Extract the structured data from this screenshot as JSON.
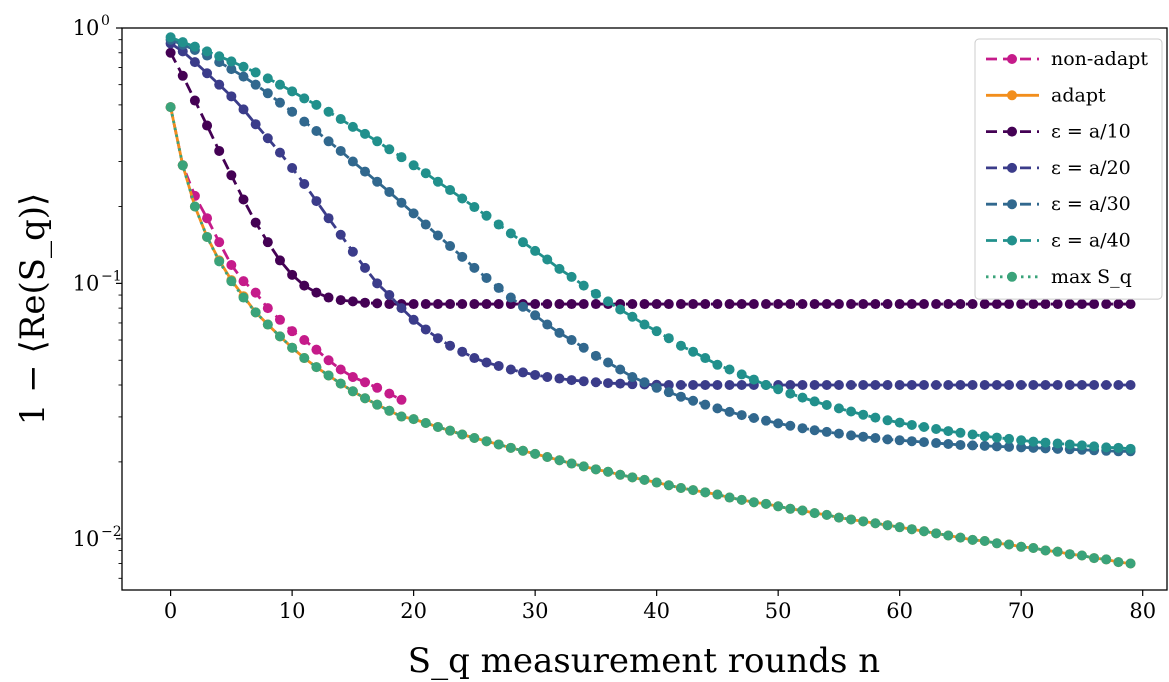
{
  "chart_data": {
    "type": "line",
    "title": "",
    "xlabel": "S_q measurement rounds n",
    "ylabel": "1 − ⟨Re(S_q)⟩",
    "xlim": [
      -4,
      82
    ],
    "ylim": [
      0.0063,
      1.0
    ],
    "yscale": "log",
    "grid": false,
    "legend_position": "top-right",
    "x_ticks": [
      0,
      10,
      20,
      30,
      40,
      50,
      60,
      70,
      80
    ],
    "y_ticks": [
      {
        "value": 1.0,
        "base": "10",
        "exp": "0"
      },
      {
        "value": 0.1,
        "base": "10",
        "exp": "−1"
      },
      {
        "value": 0.01,
        "base": "10",
        "exp": "−2"
      }
    ],
    "series": [
      {
        "name": "non-adapt",
        "color": "#c51b8a",
        "line": "dashed",
        "x": [
          0,
          1,
          2,
          3,
          4,
          5,
          6,
          7,
          8,
          9,
          10,
          11,
          12,
          13,
          14,
          15,
          16,
          17,
          18,
          19
        ],
        "y": [
          0.49,
          0.29,
          0.22,
          0.18,
          0.145,
          0.118,
          0.102,
          0.092,
          0.08,
          0.072,
          0.065,
          0.06,
          0.055,
          0.05,
          0.046,
          0.043,
          0.041,
          0.039,
          0.037,
          0.035
        ]
      },
      {
        "name": "adapt",
        "color": "#f28e1c",
        "line": "solid",
        "x_start": 0,
        "x_end": 79,
        "y": [
          0.49,
          0.29,
          0.2,
          0.152,
          0.123,
          0.103,
          0.089,
          0.077,
          0.069,
          0.062,
          0.056,
          0.051,
          0.047,
          0.0436,
          0.0405,
          0.0378,
          0.0355,
          0.0335,
          0.0317,
          0.0301,
          0.0294,
          0.0284,
          0.0274,
          0.0265,
          0.0256,
          0.0248,
          0.0241,
          0.0234,
          0.0227,
          0.0221,
          0.0215,
          0.0209,
          0.0203,
          0.0197,
          0.0192,
          0.0187,
          0.0183,
          0.0178,
          0.0174,
          0.017,
          0.0166,
          0.0162,
          0.0158,
          0.0155,
          0.0152,
          0.0149,
          0.0145,
          0.0142,
          0.0139,
          0.0137,
          0.0134,
          0.0131,
          0.0129,
          0.0126,
          0.0124,
          0.0121,
          0.0119,
          0.0117,
          0.0115,
          0.0113,
          0.0111,
          0.0109,
          0.0107,
          0.0105,
          0.0103,
          0.0101,
          0.0099,
          0.0098,
          0.0096,
          0.0095,
          0.0093,
          0.0092,
          0.009,
          0.0089,
          0.0087,
          0.0086,
          0.0084,
          0.0083,
          0.0081,
          0.008
        ]
      },
      {
        "name": "ε = a/10",
        "color": "#440154",
        "line": "dashed",
        "x_start": 0,
        "x_end": 79,
        "y": [
          0.8,
          0.65,
          0.52,
          0.415,
          0.33,
          0.265,
          0.213,
          0.173,
          0.145,
          0.123,
          0.108,
          0.098,
          0.092,
          0.088,
          0.086,
          0.085,
          0.084,
          0.0835,
          0.083,
          0.083,
          0.083,
          0.083,
          0.083,
          0.083,
          0.083,
          0.083,
          0.083,
          0.083,
          0.083,
          0.083,
          0.083,
          0.083,
          0.083,
          0.083,
          0.083,
          0.083,
          0.083,
          0.083,
          0.083,
          0.083,
          0.083,
          0.083,
          0.083,
          0.083,
          0.083,
          0.083,
          0.083,
          0.083,
          0.083,
          0.083,
          0.083,
          0.083,
          0.083,
          0.083,
          0.083,
          0.083,
          0.083,
          0.083,
          0.083,
          0.083,
          0.083,
          0.083,
          0.083,
          0.083,
          0.083,
          0.083,
          0.083,
          0.083,
          0.083,
          0.083,
          0.083,
          0.083,
          0.083,
          0.083,
          0.083,
          0.083,
          0.083,
          0.083,
          0.083,
          0.083
        ]
      },
      {
        "name": "ε = a/20",
        "color": "#3b3c8a",
        "line": "dashed",
        "x_start": 0,
        "x_end": 79,
        "y": [
          0.87,
          0.81,
          0.735,
          0.665,
          0.6,
          0.54,
          0.48,
          0.42,
          0.37,
          0.325,
          0.283,
          0.245,
          0.21,
          0.18,
          0.155,
          0.133,
          0.115,
          0.1,
          0.09,
          0.08,
          0.072,
          0.066,
          0.061,
          0.057,
          0.054,
          0.051,
          0.049,
          0.0475,
          0.046,
          0.0448,
          0.0438,
          0.043,
          0.0424,
          0.0418,
          0.0414,
          0.041,
          0.0407,
          0.0405,
          0.0403,
          0.0402,
          0.0401,
          0.04,
          0.04,
          0.04,
          0.04,
          0.04,
          0.04,
          0.04,
          0.04,
          0.04,
          0.04,
          0.04,
          0.04,
          0.04,
          0.04,
          0.04,
          0.04,
          0.04,
          0.04,
          0.04,
          0.04,
          0.04,
          0.04,
          0.04,
          0.04,
          0.04,
          0.04,
          0.04,
          0.04,
          0.04,
          0.04,
          0.04,
          0.04,
          0.04,
          0.04,
          0.04,
          0.04,
          0.04,
          0.04,
          0.04
        ]
      },
      {
        "name": "ε = a/30",
        "color": "#31688e",
        "line": "dashed",
        "x_start": 0,
        "x_end": 79,
        "y": [
          0.9,
          0.86,
          0.82,
          0.78,
          0.735,
          0.69,
          0.645,
          0.6,
          0.555,
          0.51,
          0.47,
          0.43,
          0.395,
          0.36,
          0.33,
          0.3,
          0.274,
          0.25,
          0.228,
          0.207,
          0.188,
          0.17,
          0.154,
          0.14,
          0.127,
          0.115,
          0.105,
          0.096,
          0.088,
          0.081,
          0.075,
          0.069,
          0.064,
          0.06,
          0.056,
          0.052,
          0.049,
          0.046,
          0.043,
          0.041,
          0.039,
          0.0375,
          0.036,
          0.0347,
          0.0335,
          0.0324,
          0.0314,
          0.0305,
          0.0297,
          0.029,
          0.0283,
          0.0277,
          0.0271,
          0.0266,
          0.0262,
          0.0258,
          0.0254,
          0.0251,
          0.0248,
          0.0245,
          0.0243,
          0.0241,
          0.0239,
          0.0237,
          0.0235,
          0.0233,
          0.0232,
          0.0231,
          0.023,
          0.0229,
          0.0228,
          0.0227,
          0.0226,
          0.0225,
          0.0224,
          0.0223,
          0.0222,
          0.0221,
          0.022,
          0.022
        ]
      },
      {
        "name": "ε = a/40",
        "color": "#21908c",
        "line": "dashed",
        "x_start": 0,
        "x_end": 79,
        "y": [
          0.92,
          0.88,
          0.845,
          0.81,
          0.775,
          0.74,
          0.705,
          0.67,
          0.635,
          0.6,
          0.565,
          0.53,
          0.5,
          0.47,
          0.44,
          0.41,
          0.385,
          0.36,
          0.335,
          0.312,
          0.29,
          0.27,
          0.25,
          0.232,
          0.215,
          0.199,
          0.184,
          0.17,
          0.157,
          0.145,
          0.134,
          0.124,
          0.114,
          0.106,
          0.098,
          0.091,
          0.085,
          0.079,
          0.074,
          0.069,
          0.065,
          0.061,
          0.057,
          0.054,
          0.051,
          0.048,
          0.046,
          0.044,
          0.042,
          0.04,
          0.0385,
          0.037,
          0.0357,
          0.0345,
          0.0334,
          0.0324,
          0.0315,
          0.0306,
          0.0298,
          0.0291,
          0.0285,
          0.0279,
          0.0274,
          0.0269,
          0.0264,
          0.026,
          0.0256,
          0.0252,
          0.0249,
          0.0246,
          0.0243,
          0.024,
          0.0238,
          0.0236,
          0.0234,
          0.0232,
          0.023,
          0.0228,
          0.0227,
          0.0225
        ]
      },
      {
        "name": "max S_q",
        "color": "#3aa37a",
        "line": "dotted",
        "x_start": 0,
        "x_end": 79,
        "y": [
          0.49,
          0.29,
          0.2,
          0.152,
          0.122,
          0.102,
          0.088,
          0.077,
          0.069,
          0.062,
          0.056,
          0.051,
          0.047,
          0.0436,
          0.0405,
          0.0378,
          0.0355,
          0.0335,
          0.0317,
          0.0301,
          0.0294,
          0.0284,
          0.0274,
          0.0265,
          0.0256,
          0.0248,
          0.0241,
          0.0234,
          0.0227,
          0.0221,
          0.0215,
          0.0209,
          0.0203,
          0.0197,
          0.0192,
          0.0187,
          0.0183,
          0.0178,
          0.0174,
          0.017,
          0.0166,
          0.0162,
          0.0158,
          0.0155,
          0.0152,
          0.0149,
          0.0145,
          0.0142,
          0.0139,
          0.0137,
          0.0134,
          0.0131,
          0.0129,
          0.0126,
          0.0124,
          0.0121,
          0.0119,
          0.0117,
          0.0115,
          0.0113,
          0.0111,
          0.0109,
          0.0107,
          0.0105,
          0.0103,
          0.0101,
          0.0099,
          0.0098,
          0.0096,
          0.0095,
          0.0093,
          0.0092,
          0.009,
          0.0089,
          0.0087,
          0.0086,
          0.0084,
          0.0083,
          0.0081,
          0.008
        ]
      }
    ]
  }
}
